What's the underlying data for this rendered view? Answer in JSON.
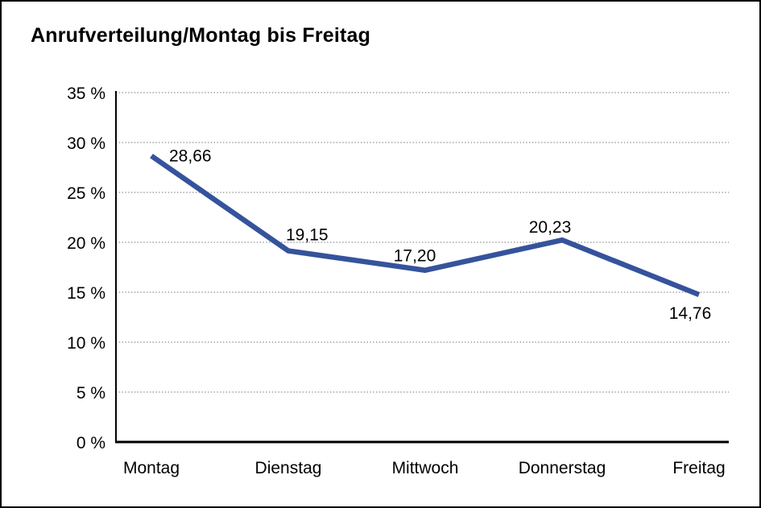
{
  "chart_data": {
    "type": "line",
    "title": "Anrufverteilung/Montag bis Freitag",
    "categories": [
      "Montag",
      "Dienstag",
      "Mittwoch",
      "Donnerstag",
      "Freitag"
    ],
    "values": [
      28.66,
      19.15,
      17.2,
      20.23,
      14.76
    ],
    "point_labels": [
      "28,66",
      "19,15",
      "17,20",
      "20,23",
      "14,76"
    ],
    "xlabel": "",
    "ylabel": "",
    "ylim": [
      0,
      35
    ],
    "ytick_step": 5,
    "ytick_labels": [
      "0 %",
      "5 %",
      "10 %",
      "15 %",
      "20 %",
      "25 %",
      "30 %",
      "35 %"
    ],
    "grid": "horizontal-dotted",
    "legend": "none",
    "colors": {
      "line": "#35539C",
      "grid": "#8a8a8a",
      "axis": "#000000",
      "text": "#000000",
      "background": "#ffffff"
    }
  }
}
